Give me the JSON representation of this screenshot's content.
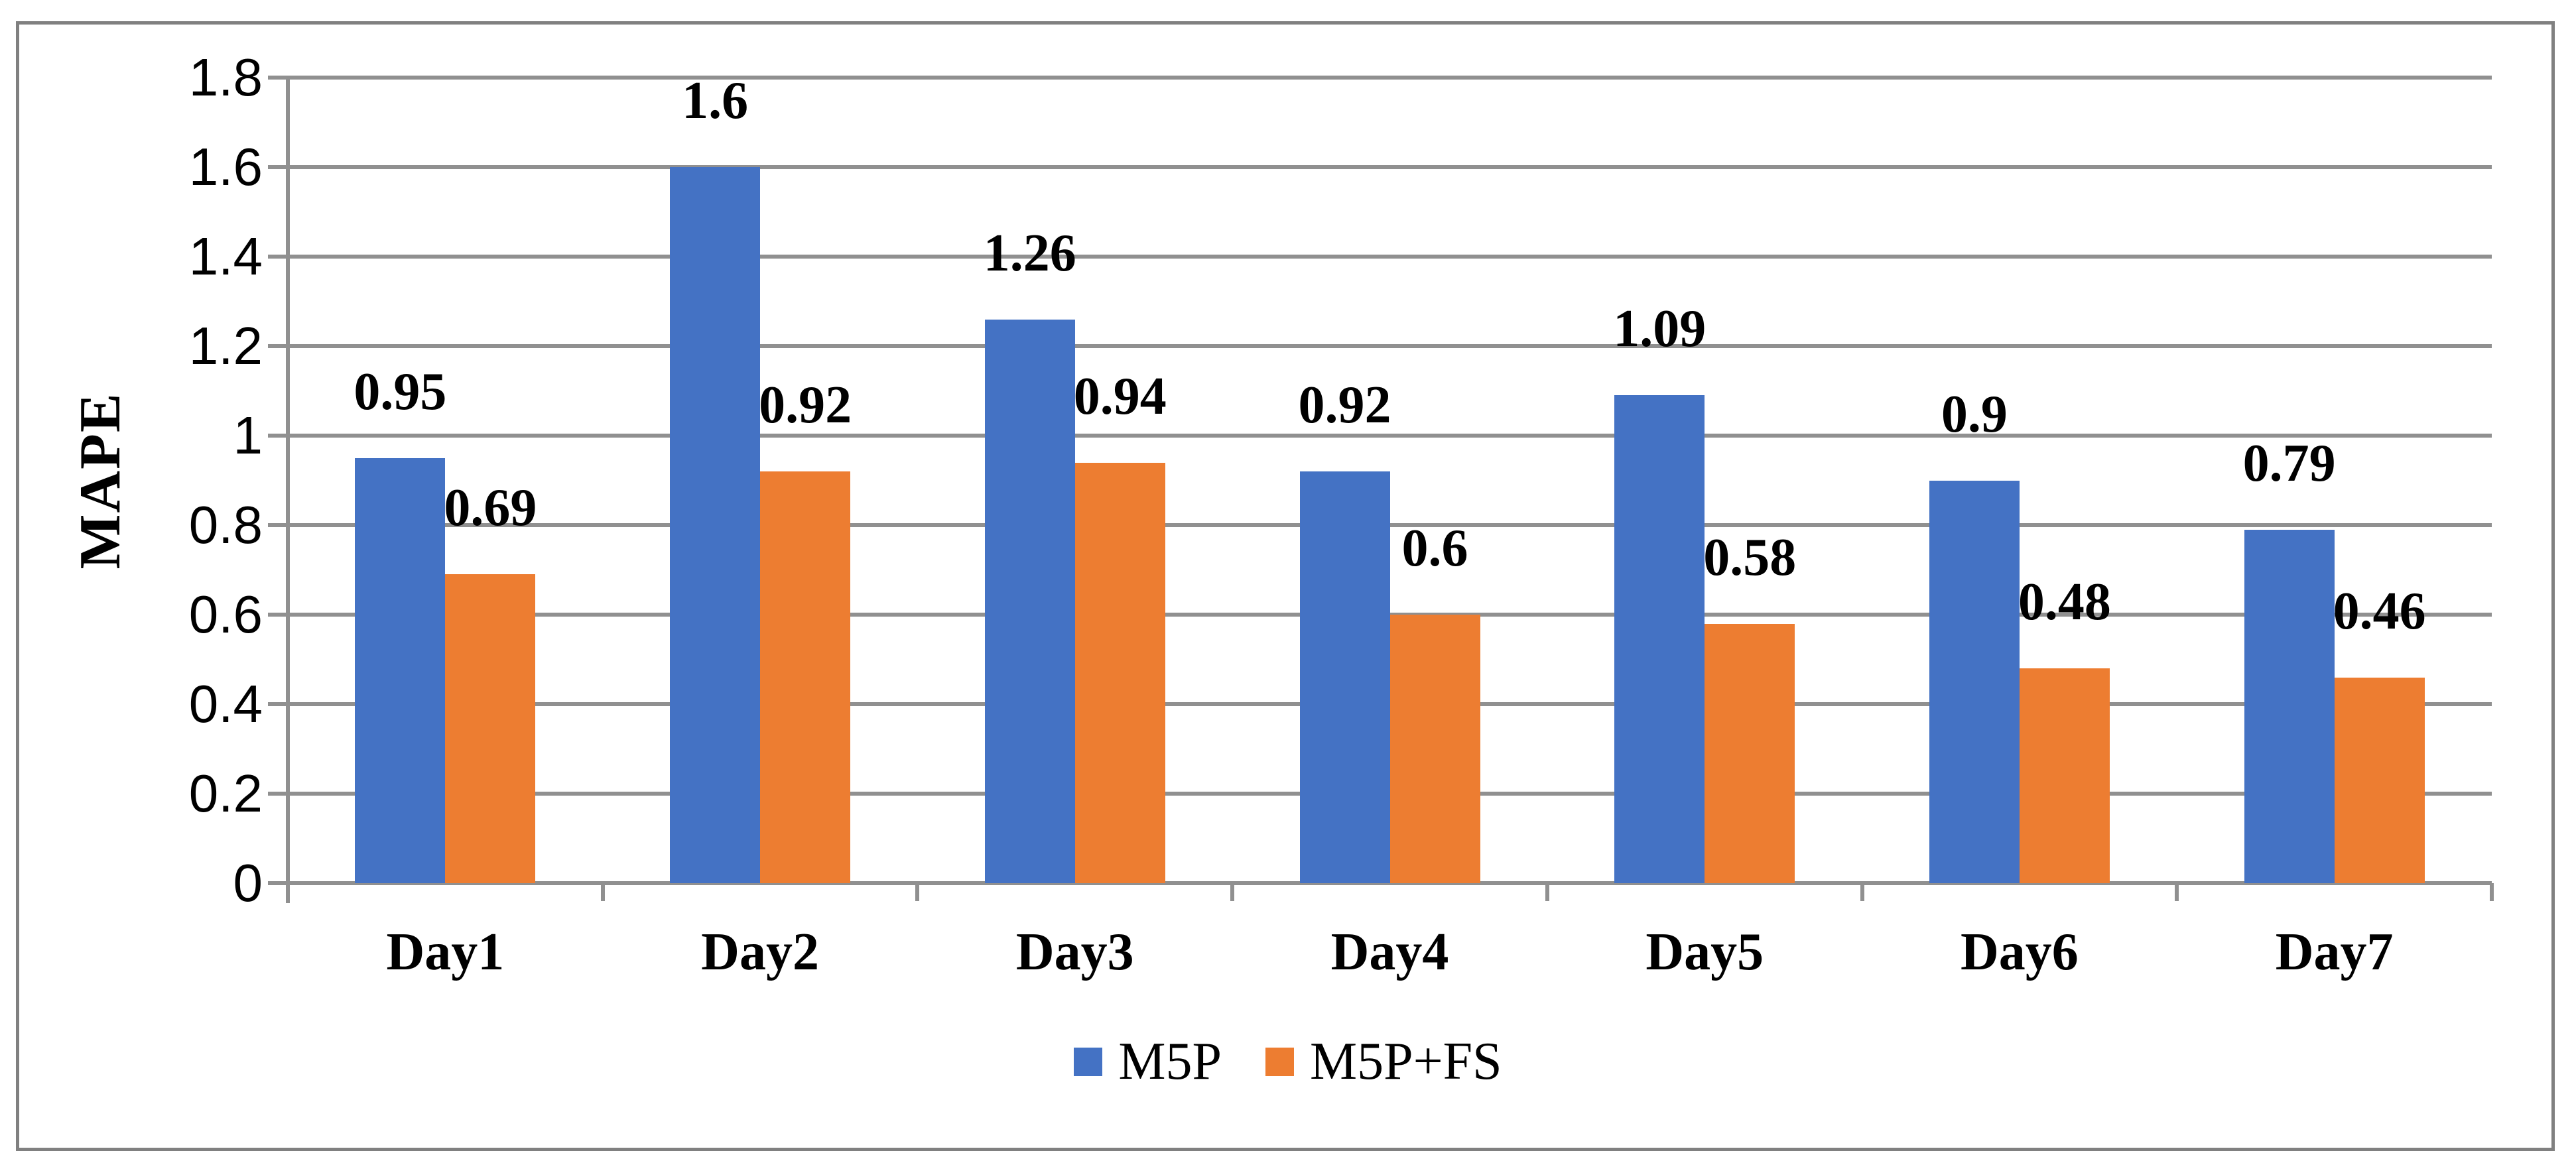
{
  "chart_data": {
    "type": "bar",
    "title": "",
    "ylabel": "MAPE",
    "xlabel": "",
    "categories": [
      "Day1",
      "Day2",
      "Day3",
      "Day4",
      "Day5",
      "Day6",
      "Day7"
    ],
    "series": [
      {
        "name": "M5P",
        "color": "#4472C4",
        "values": [
          0.95,
          1.6,
          1.26,
          0.92,
          1.09,
          0.9,
          0.79
        ],
        "labels": [
          "0.95",
          "1.6",
          "1.26",
          "0.92",
          "1.09",
          "0.9",
          "0.79"
        ]
      },
      {
        "name": "M5P+FS",
        "color": "#ED7D31",
        "values": [
          0.69,
          0.92,
          0.94,
          0.6,
          0.58,
          0.48,
          0.46
        ],
        "labels": [
          "0.69",
          "0.92",
          "0.94",
          "0.6",
          "0.58",
          "0.48",
          "0.46"
        ]
      }
    ],
    "y_axis": {
      "min": 0,
      "max": 1.8,
      "tick_step": 0.2,
      "tick_labels": [
        "0",
        "0.2",
        "0.4",
        "0.6",
        "0.8",
        "1",
        "1.2",
        "1.4",
        "1.6",
        "1.8"
      ]
    },
    "grid": "horizontal",
    "legend_position": "bottom-center",
    "colors": {
      "gridline": "#909090",
      "axis": "#909090",
      "frame_border": "#808080",
      "text": "#000000",
      "background": "#FFFFFF"
    }
  }
}
